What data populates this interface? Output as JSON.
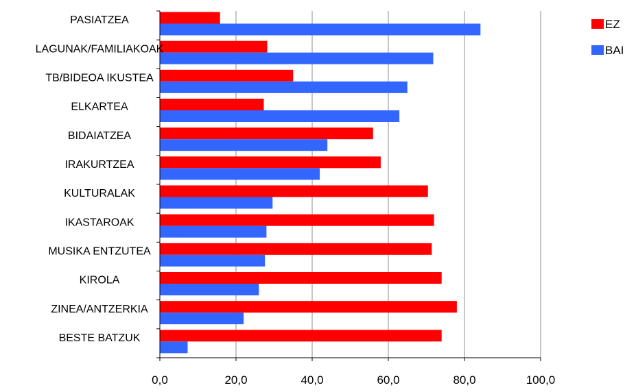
{
  "chart_data": {
    "type": "bar",
    "orientation": "horizontal",
    "categories": [
      "PASIATZEA",
      "LAGUNAK/FAMILIAKOAK",
      "TB/BIDEOA IKUSTEA",
      "ELKARTEA",
      "BIDAIATZEA",
      "IRAKURTZEA",
      "KULTURALAK",
      "IKASTAROAK",
      "MUSIKA ENTZUTEA",
      "KIROLA",
      "ZINEA/ANTZERKIA",
      "BESTE BATZUK"
    ],
    "series": [
      {
        "name": "EZ",
        "color": "#ff0000",
        "values": [
          15.8,
          28.2,
          35.0,
          27.3,
          56.0,
          58.0,
          70.4,
          72.0,
          71.4,
          74.0,
          78.0,
          74.0
        ]
      },
      {
        "name": "BAI",
        "color": "#3366ff",
        "values": [
          84.2,
          71.8,
          65.0,
          62.9,
          44.0,
          42.0,
          29.6,
          28.0,
          27.6,
          26.0,
          22.0,
          7.3
        ]
      }
    ],
    "xlim": [
      0,
      100
    ],
    "x_ticks": [
      0,
      20,
      40,
      60,
      80,
      100
    ],
    "x_tick_labels": [
      "0,0",
      "20,0",
      "40,0",
      "60,0",
      "80,0",
      "100,0"
    ],
    "grid": "vertical",
    "legend": "top-right",
    "title": "",
    "xlabel": "",
    "ylabel": ""
  }
}
